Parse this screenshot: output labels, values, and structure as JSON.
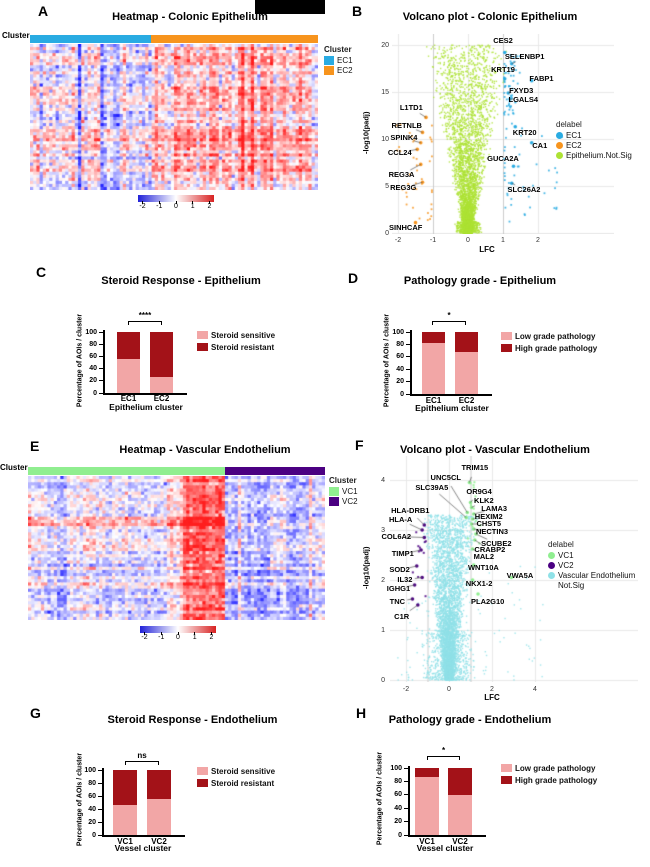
{
  "chart_data": [
    {
      "panel": "A",
      "label_letter": "A",
      "type": "heatmap",
      "title": "Heatmap - Colonic Epithelium",
      "row_annotation": "Cluster",
      "legend_title": "Cluster",
      "clusters": [
        {
          "name": "EC1",
          "color": "#29ABE2",
          "fraction": 0.42
        },
        {
          "name": "EC2",
          "color": "#F7941D",
          "fraction": 0.58
        }
      ],
      "colorbar": {
        "min": -2,
        "max": 2,
        "ticks": [
          "-2",
          "-1",
          "0",
          "1",
          "2"
        ],
        "negative_color": "#2222D8",
        "positive_color": "#D82222"
      },
      "description": "Z-scored gene expression heatmap of colonic epithelium AOIs grouped into clusters EC1 and EC2"
    },
    {
      "panel": "B",
      "label_letter": "B",
      "type": "scatter",
      "subtype": "volcano",
      "title": "Volcano plot - Colonic Epithelium",
      "xlabel": "LFC",
      "ylabel": "-log10(padj)",
      "xticks": [
        -2,
        -1,
        0,
        1,
        2
      ],
      "yticks": [
        0,
        5,
        10,
        15,
        20
      ],
      "xlim": [
        -2.4,
        2.9
      ],
      "ylim": [
        0,
        21
      ],
      "lfc_thresholds": [
        -1,
        1
      ],
      "legend": {
        "title": "delabel",
        "items": [
          {
            "label": "EC1",
            "color": "#29ABE2"
          },
          {
            "label": "EC2",
            "color": "#F7941D"
          },
          {
            "label": "Epithelium.Not.Sig",
            "color": "#ADE234"
          }
        ]
      },
      "genes": [
        {
          "name": "CES2",
          "lfc": 1.05,
          "logp": 19.2,
          "lx": 1.0,
          "ly": 20.4,
          "group": "EC1"
        },
        {
          "name": "SELENBP1",
          "lfc": 1.25,
          "logp": 18.0,
          "lx": 1.62,
          "ly": 18.7,
          "group": "EC1"
        },
        {
          "name": "KRT19",
          "lfc": 1.05,
          "logp": 16.4,
          "lx": 1.0,
          "ly": 17.3,
          "group": "EC1"
        },
        {
          "name": "FABP1",
          "lfc": 1.82,
          "logp": 16.2,
          "lx": 2.1,
          "ly": 16.4,
          "group": "EC1"
        },
        {
          "name": "FXYD3",
          "lfc": 1.15,
          "logp": 14.9,
          "lx": 1.52,
          "ly": 15.1,
          "group": "EC1"
        },
        {
          "name": "LGALS4",
          "lfc": 1.2,
          "logp": 14.25,
          "lx": 1.58,
          "ly": 14.15,
          "group": "EC1"
        },
        {
          "name": "L1TD1",
          "lfc": -1.2,
          "logp": 12.3,
          "lx": -1.62,
          "ly": 13.3,
          "group": "EC2"
        },
        {
          "name": "RETNLB",
          "lfc": -1.3,
          "logp": 10.7,
          "lx": -1.75,
          "ly": 11.4,
          "group": "EC2"
        },
        {
          "name": "KRT20",
          "lfc": 1.35,
          "logp": 11.3,
          "lx": 1.62,
          "ly": 10.6,
          "group": "EC1"
        },
        {
          "name": "SPINK4",
          "lfc": -1.35,
          "logp": 9.6,
          "lx": -1.83,
          "ly": 10.1,
          "group": "EC2"
        },
        {
          "name": "CA1",
          "lfc": 1.82,
          "logp": 9.6,
          "lx": 2.05,
          "ly": 9.3,
          "group": "EC1"
        },
        {
          "name": "CCL24",
          "lfc": -1.45,
          "logp": 8.9,
          "lx": -1.95,
          "ly": 8.55,
          "group": "EC2"
        },
        {
          "name": "GUCA2A",
          "lfc": 1.3,
          "logp": 7.1,
          "lx": 1.0,
          "ly": 7.9,
          "group": "EC1"
        },
        {
          "name": "REG3A",
          "lfc": -1.35,
          "logp": 7.3,
          "lx": -1.9,
          "ly": 6.2,
          "group": "EC2"
        },
        {
          "name": "REG3G",
          "lfc": -1.3,
          "logp": 5.4,
          "lx": -1.85,
          "ly": 4.8,
          "group": "EC2"
        },
        {
          "name": "SLC26A2",
          "lfc": 1.25,
          "logp": 5.3,
          "lx": 1.6,
          "ly": 4.6,
          "group": "EC1"
        },
        {
          "name": "SINHCAF",
          "lfc": -1.5,
          "logp": 1.1,
          "lx": -1.78,
          "ly": 0.5,
          "group": "EC2"
        }
      ]
    },
    {
      "panel": "C",
      "label_letter": "C",
      "type": "bar",
      "stacked": true,
      "title": "Steroid Response - Epithelium",
      "ylabel": "Percentage of AOIs / cluster",
      "xlabel": "Epithelium cluster",
      "categories": [
        "EC1",
        "EC2"
      ],
      "yticks": [
        0,
        20,
        40,
        60,
        80,
        100
      ],
      "ylim": [
        0,
        100
      ],
      "series": [
        {
          "name": "Steroid sensitive",
          "color": "#F2A6A6",
          "values": [
            55,
            27
          ]
        },
        {
          "name": "Steroid resistant",
          "color": "#A31218",
          "values": [
            45,
            73
          ]
        }
      ],
      "significance": "****"
    },
    {
      "panel": "D",
      "label_letter": "D",
      "type": "bar",
      "stacked": true,
      "title": "Pathology grade - Epithelium",
      "ylabel": "Percentage of AOIs / cluster",
      "xlabel": "Epithelium cluster",
      "categories": [
        "EC1",
        "EC2"
      ],
      "yticks": [
        0,
        20,
        40,
        60,
        80,
        100
      ],
      "ylim": [
        0,
        100
      ],
      "series": [
        {
          "name": "Low grade pathology",
          "color": "#F2A6A6",
          "values": [
            82,
            67
          ]
        },
        {
          "name": "High grade pathology",
          "color": "#A31218",
          "values": [
            18,
            33
          ]
        }
      ],
      "significance": "*"
    },
    {
      "panel": "E",
      "label_letter": "E",
      "type": "heatmap",
      "title": "Heatmap - Vascular Endothelium",
      "row_annotation": "Cluster",
      "legend_title": "Cluster",
      "clusters": [
        {
          "name": "VC1",
          "color": "#90EE90",
          "fraction": 0.663
        },
        {
          "name": "VC2",
          "color": "#4B0082",
          "fraction": 0.337
        }
      ],
      "colorbar": {
        "min": -2,
        "max": 2,
        "ticks": [
          "-2",
          "-1",
          "0",
          "1",
          "2"
        ],
        "negative_color": "#2222D8",
        "positive_color": "#D82222"
      },
      "description": "Z-scored gene expression heatmap of vascular endothelium AOIs grouped into clusters VC1 and VC2"
    },
    {
      "panel": "F",
      "label_letter": "F",
      "type": "scatter",
      "subtype": "volcano",
      "title": "Volcano plot - Vascular Endothelium",
      "xlabel": "LFC",
      "ylabel": "-log10(padj)",
      "xticks": [
        -2,
        0,
        2,
        4
      ],
      "yticks": [
        0,
        1,
        2,
        3,
        4
      ],
      "xlim": [
        -2.7,
        5
      ],
      "ylim": [
        0,
        4.4
      ],
      "lfc_thresholds": [
        -1,
        1
      ],
      "legend": {
        "title": "delabel",
        "items": [
          {
            "label": "VC1",
            "color": "#90EE90"
          },
          {
            "label": "VC2",
            "color": "#4B0082"
          },
          {
            "label": "Vascular Endothelium Not.Sig",
            "color": "#8FE1E7"
          }
        ]
      },
      "genes": [
        {
          "name": "TRIM15",
          "lfc": 0.95,
          "logp": 3.95,
          "lx": 1.2,
          "ly": 4.25,
          "group": "VC1"
        },
        {
          "name": "UNC5CL",
          "lfc": 0.85,
          "logp": 3.35,
          "lx": -0.15,
          "ly": 4.05,
          "group": "VC1"
        },
        {
          "name": "SLC39A5",
          "lfc": 0.8,
          "logp": 3.25,
          "lx": -0.8,
          "ly": 3.85,
          "group": "VC1"
        },
        {
          "name": "OR9G4",
          "lfc": 1.0,
          "logp": 3.55,
          "lx": 1.4,
          "ly": 3.76,
          "group": "VC1"
        },
        {
          "name": "KLK2",
          "lfc": 1.05,
          "logp": 3.45,
          "lx": 1.62,
          "ly": 3.58,
          "group": "VC1"
        },
        {
          "name": "LAMA3",
          "lfc": 1.15,
          "logp": 3.32,
          "lx": 2.1,
          "ly": 3.42,
          "group": "VC1"
        },
        {
          "name": "HEXIM2",
          "lfc": 1.1,
          "logp": 3.22,
          "lx": 1.85,
          "ly": 3.26,
          "group": "VC1"
        },
        {
          "name": "CHST5",
          "lfc": 1.05,
          "logp": 3.12,
          "lx": 1.85,
          "ly": 3.12,
          "group": "VC1"
        },
        {
          "name": "NECTIN3",
          "lfc": 1.15,
          "logp": 3.02,
          "lx": 2.0,
          "ly": 2.97,
          "group": "VC1"
        },
        {
          "name": "SCUBE2",
          "lfc": 1.25,
          "logp": 2.92,
          "lx": 2.2,
          "ly": 2.73,
          "group": "VC1"
        },
        {
          "name": "CRABP2",
          "lfc": 1.2,
          "logp": 2.8,
          "lx": 1.9,
          "ly": 2.6,
          "group": "VC1"
        },
        {
          "name": "MAL2",
          "lfc": 1.1,
          "logp": 2.62,
          "lx": 1.62,
          "ly": 2.47,
          "group": "VC1"
        },
        {
          "name": "WNT10A",
          "lfc": 1.15,
          "logp": 2.3,
          "lx": 1.6,
          "ly": 2.25,
          "group": "VC1"
        },
        {
          "name": "VWA5A",
          "lfc": 2.9,
          "logp": 2.05,
          "lx": 3.3,
          "ly": 2.08,
          "group": "VC1"
        },
        {
          "name": "NKX1-2",
          "lfc": 1.1,
          "logp": 2.0,
          "lx": 1.4,
          "ly": 1.93,
          "group": "VC1"
        },
        {
          "name": "PLA2G10",
          "lfc": 1.35,
          "logp": 1.72,
          "lx": 1.8,
          "ly": 1.57,
          "group": "VC1"
        },
        {
          "name": "HLA-DRB1",
          "lfc": -1.15,
          "logp": 3.1,
          "lx": -1.8,
          "ly": 3.38,
          "group": "VC2"
        },
        {
          "name": "HLA-A",
          "lfc": -1.25,
          "logp": 3.0,
          "lx": -2.25,
          "ly": 3.2,
          "group": "VC2"
        },
        {
          "name": "COL6A2",
          "lfc": -1.15,
          "logp": 2.85,
          "lx": -2.45,
          "ly": 2.87,
          "group": "VC2"
        },
        {
          "name": "TIMP1",
          "lfc": -1.3,
          "logp": 2.6,
          "lx": -2.15,
          "ly": 2.52,
          "group": "VC2"
        },
        {
          "name": "SOD2",
          "lfc": -1.5,
          "logp": 2.28,
          "lx": -2.3,
          "ly": 2.2,
          "group": "VC2"
        },
        {
          "name": "IL32",
          "lfc": -1.25,
          "logp": 2.05,
          "lx": -2.05,
          "ly": 2.0,
          "group": "VC2"
        },
        {
          "name": "IGHG1",
          "lfc": -1.6,
          "logp": 1.9,
          "lx": -2.35,
          "ly": 1.83,
          "group": "VC2"
        },
        {
          "name": "TNC",
          "lfc": -1.7,
          "logp": 1.62,
          "lx": -2.4,
          "ly": 1.57,
          "group": "VC2"
        },
        {
          "name": "C1R",
          "lfc": -1.45,
          "logp": 1.5,
          "lx": -2.2,
          "ly": 1.27,
          "group": "VC2"
        }
      ]
    },
    {
      "panel": "G",
      "label_letter": "G",
      "type": "bar",
      "stacked": true,
      "title": "Steroid Response - Endothelium",
      "ylabel": "Percentage of AOIs / cluster",
      "xlabel": "Vessel cluster",
      "categories": [
        "VC1",
        "VC2"
      ],
      "yticks": [
        0,
        20,
        40,
        60,
        80,
        100
      ],
      "ylim": [
        0,
        100
      ],
      "series": [
        {
          "name": "Steroid sensitive",
          "color": "#F2A6A6",
          "values": [
            46,
            56
          ]
        },
        {
          "name": "Steroid resistant",
          "color": "#A31218",
          "values": [
            54,
            44
          ]
        }
      ],
      "significance": "ns"
    },
    {
      "panel": "H",
      "label_letter": "H",
      "type": "bar",
      "stacked": true,
      "title": "Pathology grade - Endothelium",
      "ylabel": "Percentage of AOIs / cluster",
      "xlabel": "Vessel cluster",
      "categories": [
        "VC1",
        "VC2"
      ],
      "yticks": [
        0,
        20,
        40,
        60,
        80,
        100
      ],
      "ylim": [
        0,
        100
      ],
      "series": [
        {
          "name": "Low grade pathology",
          "color": "#F2A6A6",
          "values": [
            86,
            60
          ]
        },
        {
          "name": "High grade pathology",
          "color": "#A31218",
          "values": [
            14,
            40
          ]
        }
      ],
      "significance": "*"
    }
  ]
}
